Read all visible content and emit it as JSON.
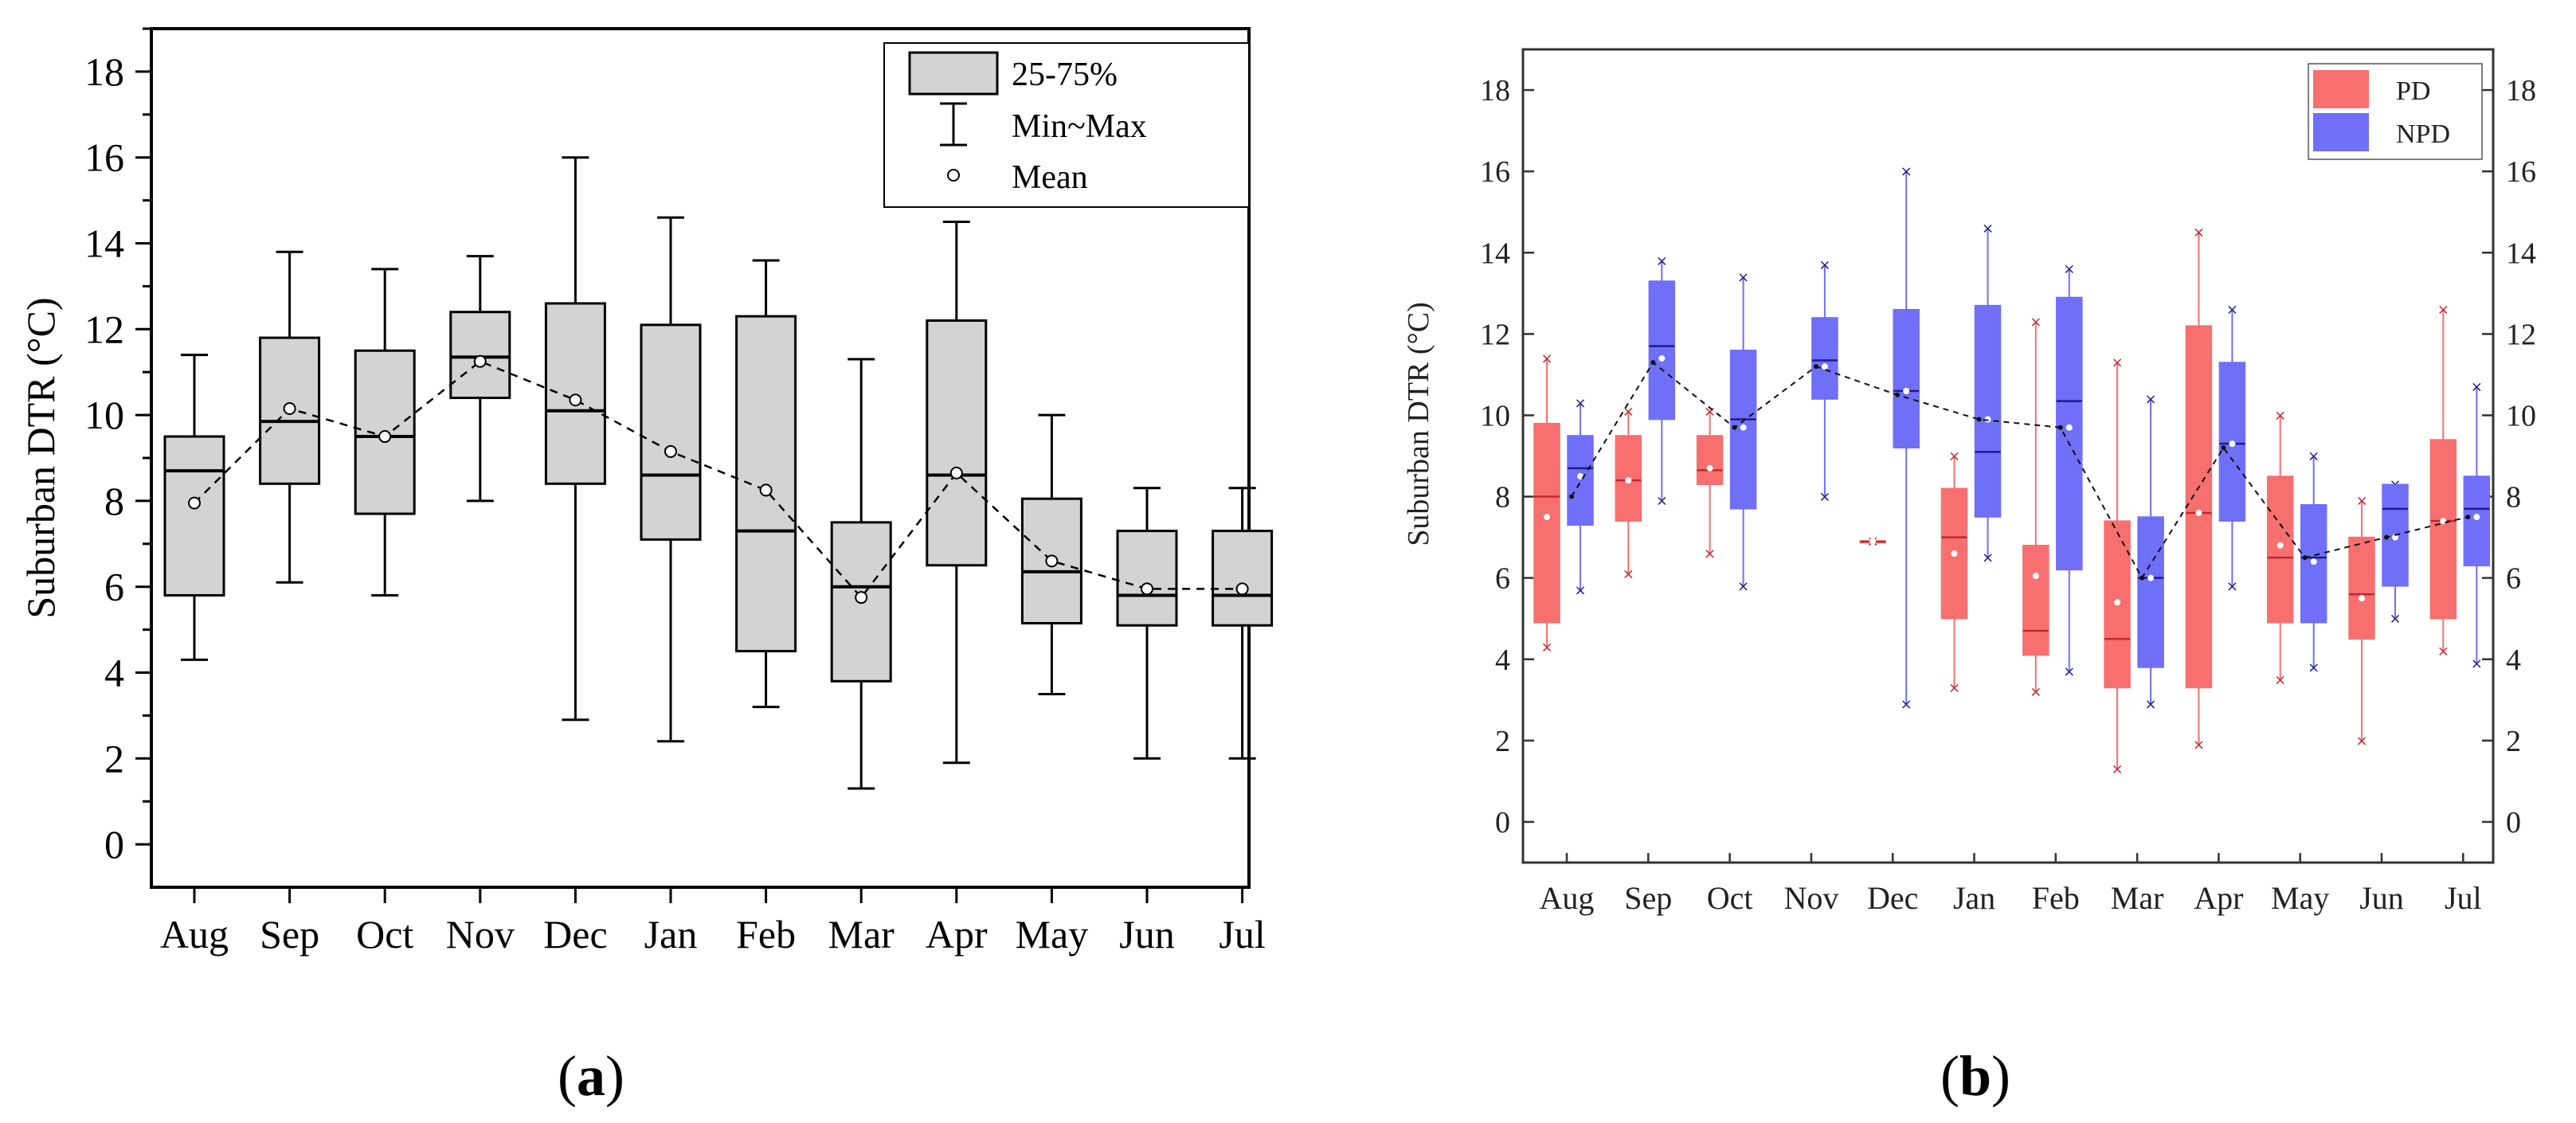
{
  "chart_data": [
    {
      "type": "box",
      "panel_label": "a",
      "ylabel": "Suburban DTR (°C)",
      "xlabel": "",
      "ylim": [
        -1,
        19
      ],
      "yticks": [
        0,
        2,
        4,
        6,
        8,
        10,
        12,
        14,
        16,
        18
      ],
      "categories": [
        "Aug",
        "Sep",
        "Oct",
        "Nov",
        "Dec",
        "Jan",
        "Feb",
        "Mar",
        "Apr",
        "May",
        "Jun",
        "Jul"
      ],
      "boxes": [
        {
          "min": 4.3,
          "q1": 5.8,
          "median": 8.7,
          "q3": 9.5,
          "max": 11.4,
          "mean": 7.95
        },
        {
          "min": 6.1,
          "q1": 8.4,
          "median": 9.85,
          "q3": 11.8,
          "max": 13.8,
          "mean": 10.15
        },
        {
          "min": 5.8,
          "q1": 7.7,
          "median": 9.5,
          "q3": 11.5,
          "max": 13.4,
          "mean": 9.5
        },
        {
          "min": 8.0,
          "q1": 10.4,
          "median": 11.35,
          "q3": 12.4,
          "max": 13.7,
          "mean": 11.25
        },
        {
          "min": 2.9,
          "q1": 8.4,
          "median": 10.1,
          "q3": 12.6,
          "max": 16.0,
          "mean": 10.35
        },
        {
          "min": 2.4,
          "q1": 7.1,
          "median": 8.6,
          "q3": 12.1,
          "max": 14.6,
          "mean": 9.15
        },
        {
          "min": 3.2,
          "q1": 4.5,
          "median": 7.3,
          "q3": 12.3,
          "max": 13.6,
          "mean": 8.25
        },
        {
          "min": 1.3,
          "q1": 3.8,
          "median": 6.0,
          "q3": 7.5,
          "max": 11.3,
          "mean": 5.75
        },
        {
          "min": 1.9,
          "q1": 6.5,
          "median": 8.6,
          "q3": 12.2,
          "max": 14.5,
          "mean": 8.65
        },
        {
          "min": 3.5,
          "q1": 5.15,
          "median": 6.35,
          "q3": 8.05,
          "max": 10.0,
          "mean": 6.6
        },
        {
          "min": 2.0,
          "q1": 5.1,
          "median": 5.8,
          "q3": 7.3,
          "max": 8.3,
          "mean": 5.95
        },
        {
          "min": 2.0,
          "q1": 5.1,
          "median": 5.8,
          "q3": 7.3,
          "max": 8.3,
          "mean": 5.95
        }
      ],
      "legend": {
        "position": "top-right",
        "items": [
          "25-75%",
          "Min~Max",
          "Mean"
        ]
      },
      "colors": {
        "box_fill": "#d3d3d3",
        "stroke": "#000000"
      }
    },
    {
      "type": "box",
      "panel_label": "b",
      "ylabel": "Suburban DTR (°C)",
      "xlabel": "",
      "ylim": [
        -1,
        19
      ],
      "yticks": [
        0,
        2,
        4,
        6,
        8,
        10,
        12,
        14,
        16,
        18
      ],
      "secondary_y": true,
      "categories": [
        "Aug",
        "Sep",
        "Oct",
        "Nov",
        "Dec",
        "Jan",
        "Feb",
        "Mar",
        "Apr",
        "May",
        "Jun",
        "Jul"
      ],
      "series": [
        {
          "name": "PD",
          "color": "#f76f6f",
          "boxes": [
            {
              "min": 4.3,
              "q1": 4.9,
              "median": 8.0,
              "q3": 9.8,
              "max": 11.4,
              "mean": 7.5
            },
            {
              "min": 6.1,
              "q1": 7.4,
              "median": 8.4,
              "q3": 9.5,
              "max": 10.1,
              "mean": 8.4
            },
            {
              "min": 6.6,
              "q1": 8.3,
              "median": 8.65,
              "q3": 9.5,
              "max": 10.1,
              "mean": 8.7
            },
            null,
            {
              "min": 6.9,
              "q1": 6.9,
              "median": 6.9,
              "q3": 6.9,
              "max": 6.9,
              "mean": 6.9
            },
            {
              "min": 3.3,
              "q1": 5.0,
              "median": 7.0,
              "q3": 8.2,
              "max": 9.0,
              "mean": 6.6
            },
            {
              "min": 3.2,
              "q1": 4.1,
              "median": 4.7,
              "q3": 6.8,
              "max": 12.3,
              "mean": 6.05
            },
            {
              "min": 1.3,
              "q1": 3.3,
              "median": 4.5,
              "q3": 7.4,
              "max": 11.3,
              "mean": 5.4
            },
            {
              "min": 1.9,
              "q1": 3.3,
              "median": 7.6,
              "q3": 12.2,
              "max": 14.5,
              "mean": 7.6
            },
            {
              "min": 3.5,
              "q1": 4.9,
              "median": 6.5,
              "q3": 8.5,
              "max": 10.0,
              "mean": 6.8
            },
            {
              "min": 2.0,
              "q1": 4.5,
              "median": 5.6,
              "q3": 7.0,
              "max": 7.9,
              "mean": 5.5
            },
            {
              "min": 4.2,
              "q1": 5.0,
              "median": 7.4,
              "q3": 9.4,
              "max": 12.6,
              "mean": 7.4
            }
          ]
        },
        {
          "name": "NPD",
          "color": "#6f6ff7",
          "boxes": [
            {
              "min": 5.7,
              "q1": 7.3,
              "median": 8.7,
              "q3": 9.5,
              "max": 10.3,
              "mean": 8.5
            },
            {
              "min": 7.9,
              "q1": 9.9,
              "median": 11.7,
              "q3": 13.3,
              "max": 13.8,
              "mean": 11.4
            },
            {
              "min": 5.8,
              "q1": 7.7,
              "median": 9.9,
              "q3": 11.6,
              "max": 13.4,
              "mean": 9.7
            },
            {
              "min": 8.0,
              "q1": 10.4,
              "median": 11.35,
              "q3": 12.4,
              "max": 13.7,
              "mean": 11.2
            },
            {
              "min": 2.9,
              "q1": 9.2,
              "median": 10.6,
              "q3": 12.6,
              "max": 16.0,
              "mean": 10.6
            },
            {
              "min": 6.5,
              "q1": 7.5,
              "median": 9.1,
              "q3": 12.7,
              "max": 14.6,
              "mean": 9.9
            },
            {
              "min": 3.7,
              "q1": 6.2,
              "median": 10.35,
              "q3": 12.9,
              "max": 13.6,
              "mean": 9.7
            },
            {
              "min": 2.9,
              "q1": 3.8,
              "median": 6.0,
              "q3": 7.5,
              "max": 10.4,
              "mean": 6.0
            },
            {
              "min": 5.8,
              "q1": 7.4,
              "median": 9.3,
              "q3": 11.3,
              "max": 12.6,
              "mean": 9.3
            },
            {
              "min": 3.8,
              "q1": 4.9,
              "median": 6.5,
              "q3": 7.8,
              "max": 9.0,
              "mean": 6.4
            },
            {
              "min": 5.0,
              "q1": 5.8,
              "median": 7.7,
              "q3": 8.3,
              "max": 8.3,
              "mean": 7.0
            },
            {
              "min": 3.9,
              "q1": 6.3,
              "median": 7.7,
              "q3": 8.5,
              "max": 10.7,
              "mean": 7.5
            }
          ]
        }
      ],
      "mean_line": [
        8.0,
        11.3,
        9.7,
        11.2,
        10.5,
        9.9,
        9.7,
        6.0,
        9.2,
        6.5,
        7.0,
        7.5
      ],
      "legend": {
        "position": "top-right",
        "items": [
          "PD",
          "NPD"
        ]
      }
    }
  ]
}
